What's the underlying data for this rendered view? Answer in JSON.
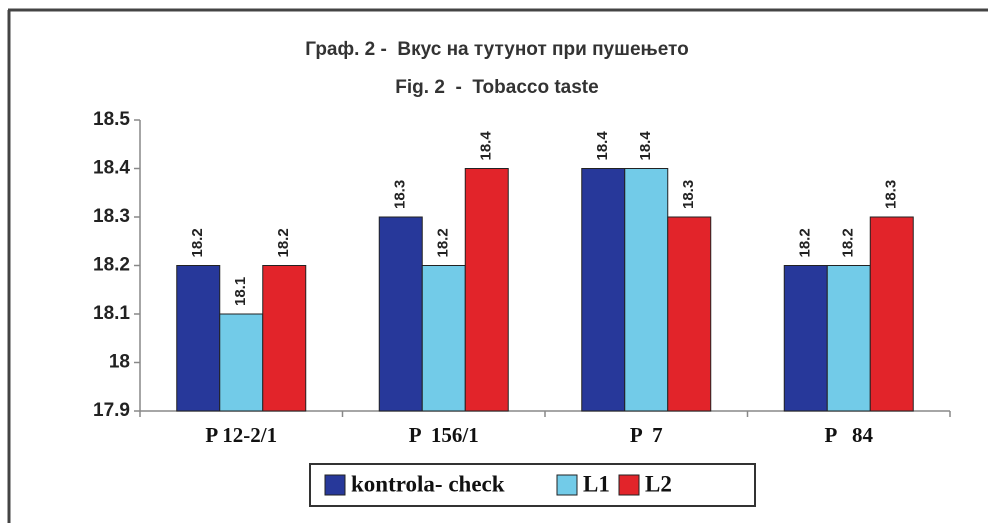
{
  "chart_data": {
    "type": "bar",
    "title": "Граф. 2 -  Вкус на тутунот при пушењето",
    "subtitle": "Fig. 2  -  Tobacco taste",
    "categories": [
      "P 12-2/1",
      "P  156/1",
      "P  7",
      "P   84"
    ],
    "series": [
      {
        "name": "kontrola- check",
        "color": "#27389a",
        "values": [
          18.2,
          18.3,
          18.4,
          18.2
        ]
      },
      {
        "name": "L1",
        "color": "#72cbe8",
        "values": [
          18.1,
          18.2,
          18.4,
          18.2
        ]
      },
      {
        "name": "L2",
        "color": "#e2242a",
        "values": [
          18.2,
          18.4,
          18.3,
          18.3
        ]
      }
    ],
    "ylim": [
      17.9,
      18.5
    ],
    "yticks": [
      17.9,
      18,
      18.1,
      18.2,
      18.3,
      18.4,
      18.5
    ],
    "grid": false,
    "legend": "bottom"
  }
}
